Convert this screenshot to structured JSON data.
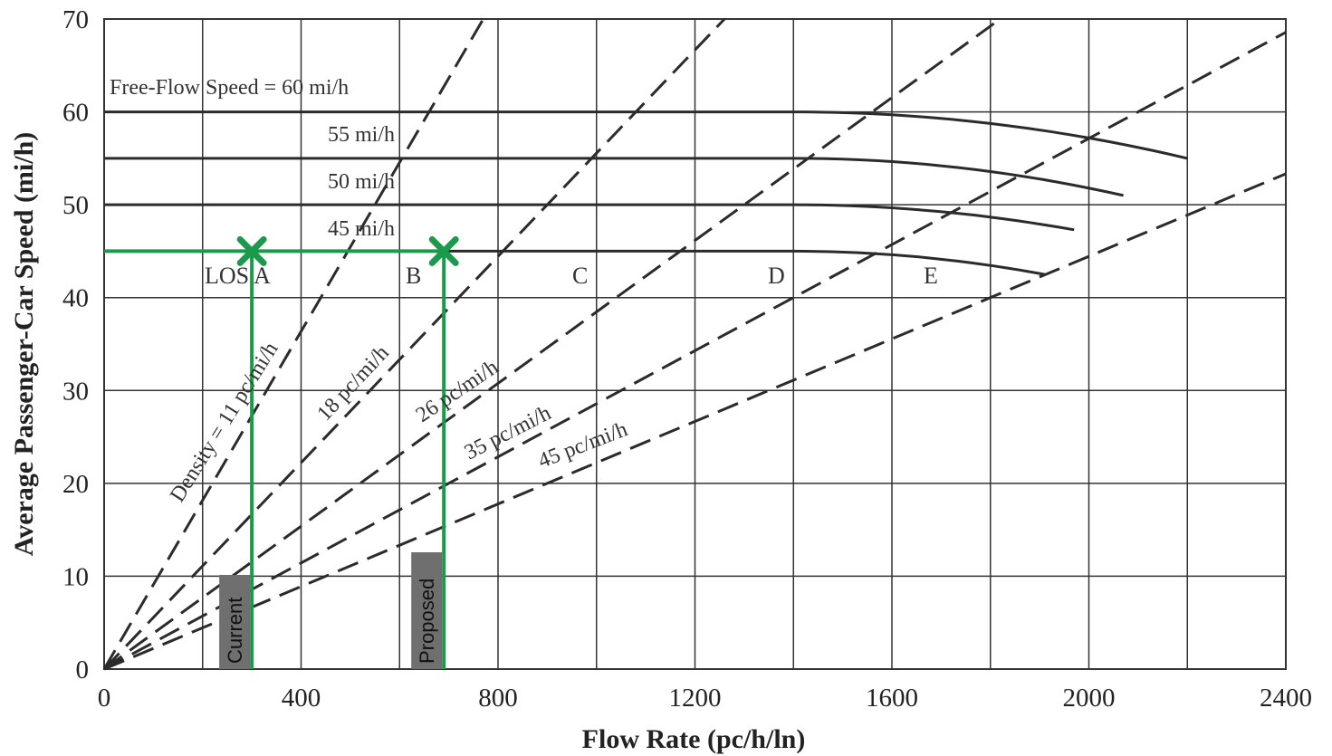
{
  "chart_data": {
    "type": "line",
    "xlabel": "Flow Rate (pc/h/ln)",
    "ylabel": "Average Passenger-Car Speed (mi/h)",
    "xlim": [
      0,
      2400
    ],
    "ylim": [
      0,
      70
    ],
    "x_ticks": [
      "0",
      "400",
      "800",
      "1200",
      "1600",
      "2000",
      "2400"
    ],
    "y_ticks": [
      "0",
      "10",
      "20",
      "30",
      "40",
      "50",
      "60",
      "70"
    ],
    "x_grid_step": 200,
    "y_grid_step": 10,
    "grid": true,
    "speed_flow_curves": [
      {
        "label": "Free-Flow Speed = 60 mi/h",
        "ffs": 60,
        "breakpoint": 1400,
        "capacity": [
          2200,
          55.0
        ]
      },
      {
        "label": "55 mi/h",
        "ffs": 55,
        "breakpoint": 1400,
        "capacity": [
          2070,
          51.0
        ]
      },
      {
        "label": "50 mi/h",
        "ffs": 50,
        "breakpoint": 1400,
        "capacity": [
          1970,
          47.3
        ]
      },
      {
        "label": "45 mi/h",
        "ffs": 45,
        "breakpoint": 1400,
        "capacity": [
          1910,
          42.5
        ]
      }
    ],
    "density_lines": [
      {
        "label": "Density = 11 pc/mi/h",
        "density": 11
      },
      {
        "label": "18 pc/mi/h",
        "density": 18
      },
      {
        "label": "26 pc/mi/h",
        "density": 26
      },
      {
        "label": "35 pc/mi/h",
        "density": 35
      },
      {
        "label": "45 pc/mi/h",
        "density": 45
      }
    ],
    "los_labels": [
      "LOS A",
      "B",
      "C",
      "D",
      "E"
    ],
    "markers": [
      {
        "label": "Current",
        "flow": 300,
        "speed": 45,
        "color": "#1a9a4a"
      },
      {
        "label": "Proposed",
        "flow": 690,
        "speed": 45,
        "color": "#1a9a4a"
      }
    ],
    "colors": {
      "curve": "#2b2b2b",
      "density": "#2b2b2b",
      "grid": "#333333",
      "marker": "#1a9a4a",
      "label_box": "#6f6f6f"
    }
  }
}
